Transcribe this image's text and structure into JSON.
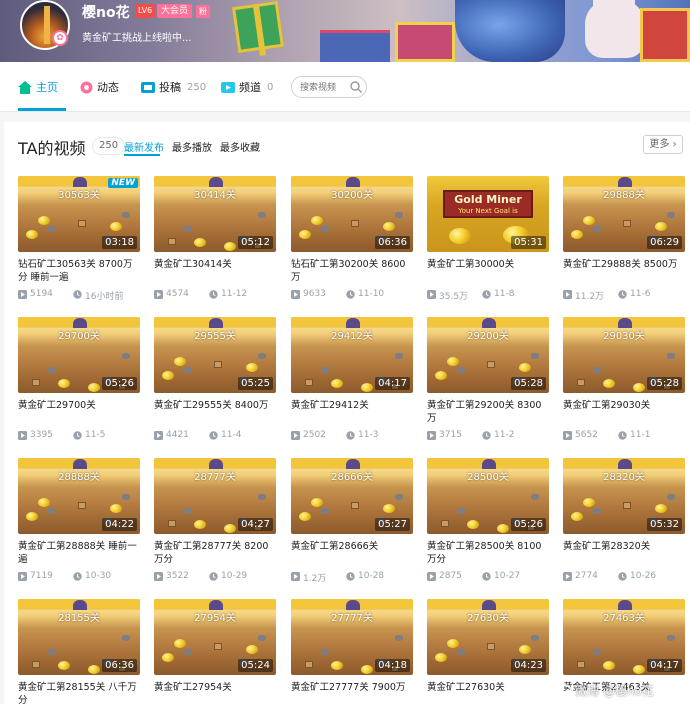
{
  "profile": {
    "username": "樱no花",
    "level_badge": "LV6",
    "vip_badge": "大会员",
    "gender_badge": "粉",
    "signature": "黄金矿工挑战上线啦中..."
  },
  "nav": {
    "home": "主页",
    "dynamic": "动态",
    "submissions": "投稿",
    "submissions_count": "250",
    "channels": "频道",
    "channels_count": "0",
    "search_placeholder": "搜索视频"
  },
  "section": {
    "title": "TA的视频",
    "count": "250",
    "sort_tabs": [
      "最新发布",
      "最多播放",
      "最多收藏"
    ],
    "more": "更多"
  },
  "colors": {
    "accent": "#00a1d6",
    "pink": "#fb7299"
  },
  "videos": [
    {
      "level": "30563关",
      "duration": "03:18",
      "title": "钻石矿工30563关 8700万分 睡前一遍",
      "plays": "5194",
      "date": "16小时前",
      "badge": "NEW"
    },
    {
      "level": "30414关",
      "duration": "05:12",
      "title": "黄金矿工30414关",
      "plays": "4574",
      "date": "11-12"
    },
    {
      "level": "30200关",
      "duration": "06:36",
      "title": "钻石矿工第30200关 8600万",
      "plays": "9633",
      "date": "11-10"
    },
    {
      "level": "30000关",
      "duration": "05:31",
      "title": "黄金矿工第30000关",
      "plays": "35.5万",
      "date": "11-8",
      "special_title": "Gold Miner",
      "special_sub": "Your Next Goal is",
      "special": true
    },
    {
      "level": "29888关",
      "duration": "06:29",
      "title": "黄金矿工29888关 8500万",
      "plays": "11.2万",
      "date": "11-6"
    },
    {
      "level": "29700关",
      "duration": "05:26",
      "title": "黄金矿工29700关",
      "plays": "3395",
      "date": "11-5"
    },
    {
      "level": "29555关",
      "duration": "05:25",
      "title": "黄金矿工29555关 8400万",
      "plays": "4421",
      "date": "11-4"
    },
    {
      "level": "29412关",
      "duration": "04:17",
      "title": "黄金矿工29412关",
      "plays": "2502",
      "date": "11-3"
    },
    {
      "level": "29200关",
      "duration": "05:28",
      "title": "黄金矿工第29200关 8300万",
      "plays": "3715",
      "date": "11-2"
    },
    {
      "level": "29030关",
      "duration": "05:28",
      "title": "黄金矿工第29030关",
      "plays": "5652",
      "date": "11-1"
    },
    {
      "level": "28888关",
      "duration": "04:22",
      "title": "黄金矿工第28888关 睡前一遍",
      "plays": "7119",
      "date": "10-30"
    },
    {
      "level": "28777关",
      "duration": "04:27",
      "title": "黄金矿工第28777关 8200万分",
      "plays": "3522",
      "date": "10-29"
    },
    {
      "level": "28666关",
      "duration": "05:27",
      "title": "黄金矿工第28666关",
      "plays": "1.2万",
      "date": "10-28"
    },
    {
      "level": "28500关",
      "duration": "05:26",
      "title": "黄金矿工第28500关 8100万分",
      "plays": "2875",
      "date": "10-27"
    },
    {
      "level": "28320关",
      "duration": "05:32",
      "title": "黄金矿工第28320关",
      "plays": "2774",
      "date": "10-26"
    },
    {
      "level": "28155关",
      "duration": "06:36",
      "title": "黄金矿工第28155关 八千万分",
      "plays": "",
      "date": ""
    },
    {
      "level": "27954关",
      "duration": "05:24",
      "title": "黄金矿工27954关",
      "plays": "",
      "date": ""
    },
    {
      "level": "27777关",
      "duration": "04:18",
      "title": "黄金矿工27777关 7900万",
      "plays": "",
      "date": ""
    },
    {
      "level": "27630关",
      "duration": "04:23",
      "title": "黄金矿工27630关",
      "plays": "",
      "date": ""
    },
    {
      "level": "27463关",
      "duration": "04:17",
      "title": "黄金矿工第27463关",
      "plays": "",
      "date": ""
    }
  ],
  "watermark": "微博 @樱no花"
}
